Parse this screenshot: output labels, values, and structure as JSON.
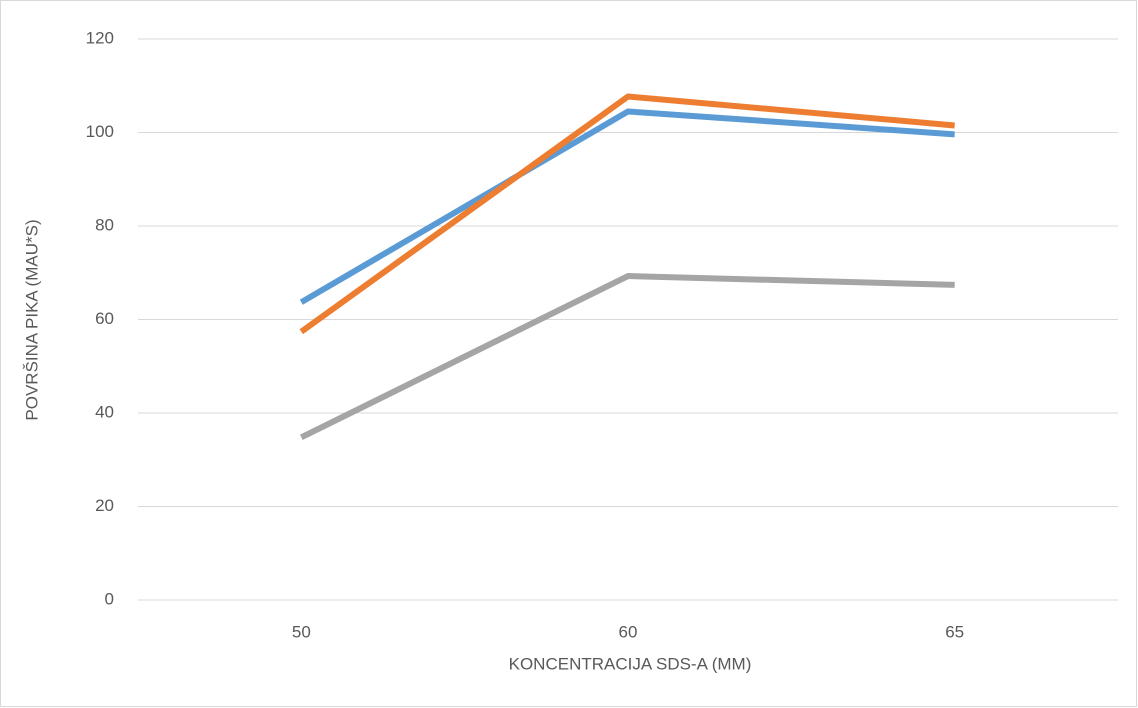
{
  "chart_data": {
    "type": "line",
    "x_label": "KONCENTRACIJA SDS-A (MM)",
    "y_label": "POVRŠINA PIKA (MAU*S)",
    "categories": [
      "50",
      "60",
      "65"
    ],
    "series": [
      {
        "color": "#5b9bd5",
        "values": [
          63.7,
          104.5,
          99.6
        ]
      },
      {
        "color": "#ed7d31",
        "values": [
          57.4,
          107.7,
          101.5
        ]
      },
      {
        "color": "#a5a5a5",
        "values": [
          34.8,
          69.3,
          67.4
        ]
      }
    ],
    "ylim": [
      0,
      120
    ],
    "yticks": [
      0,
      20,
      40,
      60,
      80,
      100,
      120
    ],
    "grid": true
  }
}
